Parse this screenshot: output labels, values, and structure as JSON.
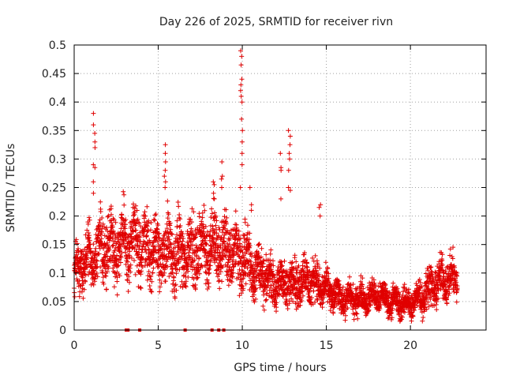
{
  "chart_data": {
    "type": "scatter",
    "title": "Day 226 of 2025, SRMTID for receiver rivn",
    "xlabel": "GPS time / hours",
    "ylabel": "SRMTID / TECUs",
    "xlim": [
      0,
      24.5
    ],
    "ylim": [
      0,
      0.5
    ],
    "grid": true,
    "marker": "plus",
    "color": "#e00000",
    "xticks": [
      0,
      5,
      10,
      15,
      20
    ],
    "xtick_labels": [
      "0",
      "5",
      "10",
      "15",
      "20"
    ],
    "yticks": [
      0,
      0.05,
      0.1,
      0.15,
      0.2,
      0.25,
      0.3,
      0.35,
      0.4,
      0.45,
      0.5
    ],
    "ytick_labels": [
      "0",
      "0.05",
      "0.1",
      "0.15",
      "0.2",
      "0.25",
      "0.3",
      "0.35",
      "0.4",
      "0.45",
      "0.5"
    ],
    "trend": {
      "x": [
        0,
        1,
        2,
        3,
        4,
        5,
        6,
        7,
        8,
        9,
        10,
        11,
        12,
        13,
        14,
        15,
        16,
        17,
        18,
        19,
        20,
        21,
        22,
        22.8
      ],
      "center": [
        0.1,
        0.13,
        0.15,
        0.15,
        0.15,
        0.14,
        0.13,
        0.14,
        0.15,
        0.14,
        0.13,
        0.1,
        0.08,
        0.085,
        0.09,
        0.07,
        0.055,
        0.055,
        0.06,
        0.05,
        0.045,
        0.07,
        0.09,
        0.09
      ],
      "spread": [
        0.05,
        0.06,
        0.07,
        0.07,
        0.07,
        0.07,
        0.07,
        0.07,
        0.07,
        0.07,
        0.07,
        0.05,
        0.04,
        0.05,
        0.05,
        0.035,
        0.03,
        0.03,
        0.03,
        0.03,
        0.03,
        0.04,
        0.04,
        0.04
      ],
      "samples_per_hour": 150
    },
    "spikes": [
      {
        "x": 1.2,
        "values": [
          0.38,
          0.36,
          0.345,
          0.33,
          0.32,
          0.29,
          0.285,
          0.26,
          0.24
        ]
      },
      {
        "x": 5.4,
        "values": [
          0.325,
          0.31,
          0.295,
          0.28,
          0.27,
          0.26,
          0.25
        ]
      },
      {
        "x": 8.3,
        "values": [
          0.26,
          0.255,
          0.24,
          0.23
        ]
      },
      {
        "x": 8.8,
        "values": [
          0.295,
          0.27,
          0.265,
          0.25
        ]
      },
      {
        "x": 9.95,
        "values": [
          0.49,
          0.48,
          0.465,
          0.44,
          0.43,
          0.42,
          0.41,
          0.4,
          0.37,
          0.35,
          0.33,
          0.31,
          0.29,
          0.25
        ]
      },
      {
        "x": 10.5,
        "values": [
          0.25,
          0.22,
          0.21
        ]
      },
      {
        "x": 12.3,
        "values": [
          0.31,
          0.285,
          0.28,
          0.23
        ]
      },
      {
        "x": 12.8,
        "values": [
          0.35,
          0.34,
          0.325,
          0.31,
          0.3,
          0.28,
          0.25,
          0.245
        ]
      },
      {
        "x": 14.6,
        "values": [
          0.22,
          0.215,
          0.2
        ]
      }
    ],
    "zero_markers": [
      3.1,
      3.2,
      3.9,
      6.6,
      8.2,
      8.6,
      8.9
    ]
  }
}
